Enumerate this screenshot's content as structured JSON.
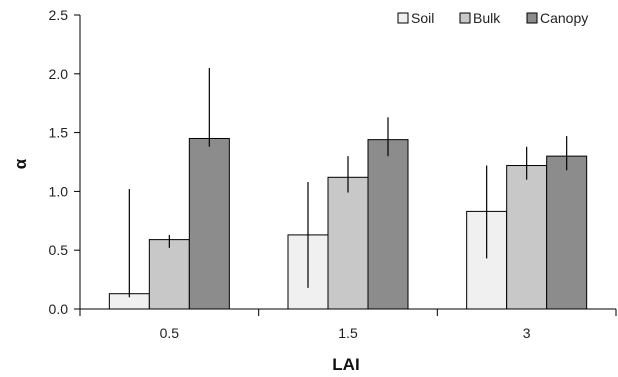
{
  "chart_data": {
    "type": "bar",
    "title": "",
    "xlabel": "LAI",
    "ylabel": "α",
    "ylim": [
      0,
      2.5
    ],
    "yticks": [
      0.0,
      0.5,
      1.0,
      1.5,
      2.0,
      2.5
    ],
    "ytick_labels": [
      "0.0",
      "0.5",
      "1.0",
      "1.5",
      "2.0",
      "2.5"
    ],
    "categories": [
      "0.5",
      "1.5",
      "3"
    ],
    "grid": false,
    "legend_position": "top-right",
    "series": [
      {
        "name": "Soil",
        "color": "#f0f0f0",
        "values": [
          0.13,
          0.63,
          0.83
        ],
        "error_low": [
          0.1,
          0.18,
          0.43
        ],
        "error_high": [
          1.02,
          1.08,
          1.22
        ]
      },
      {
        "name": "Bulk",
        "color": "#c8c8c8",
        "values": [
          0.59,
          1.12,
          1.22
        ],
        "error_low": [
          0.52,
          0.99,
          1.1
        ],
        "error_high": [
          0.63,
          1.3,
          1.38
        ]
      },
      {
        "name": "Canopy",
        "color": "#8c8c8c",
        "values": [
          1.45,
          1.44,
          1.3
        ],
        "error_low": [
          1.38,
          1.3,
          1.18
        ],
        "error_high": [
          2.05,
          1.63,
          1.47
        ]
      }
    ]
  }
}
